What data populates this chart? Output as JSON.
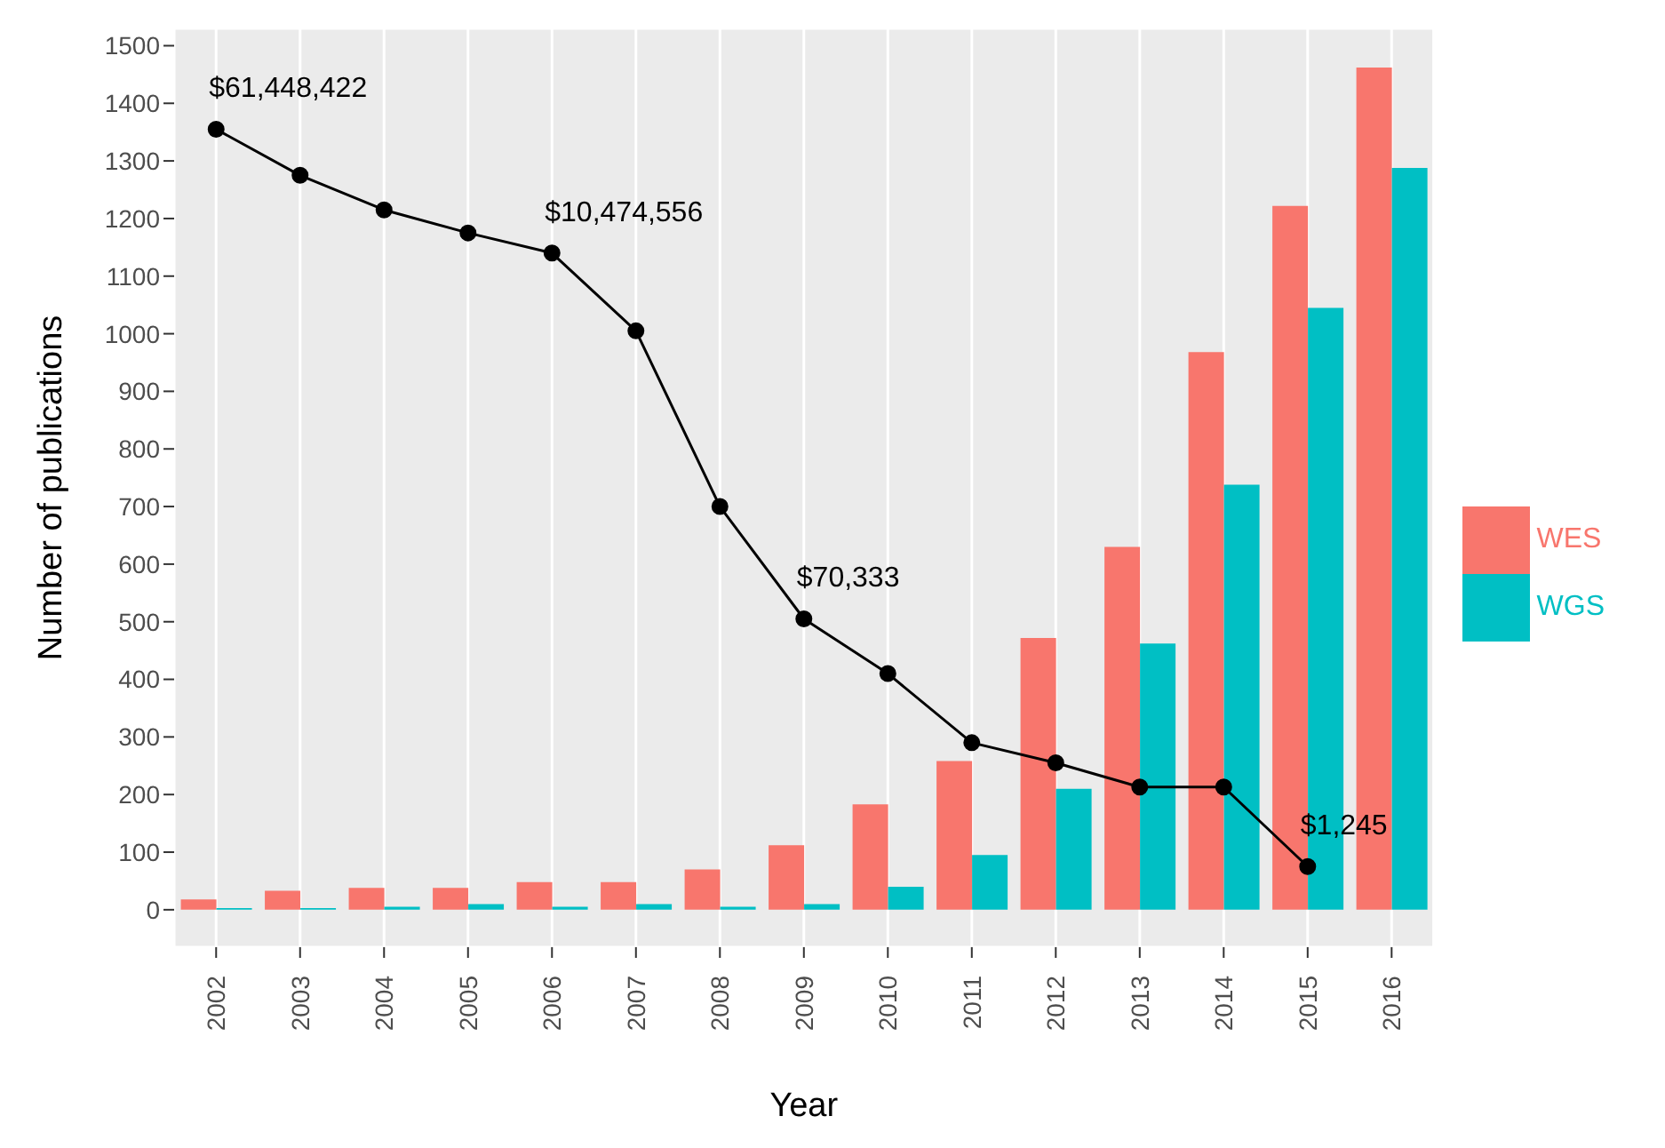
{
  "chart_data": {
    "type": "bar",
    "xlabel": "Year",
    "ylabel": "Number of publications",
    "categories": [
      "2002",
      "2003",
      "2004",
      "2005",
      "2006",
      "2007",
      "2008",
      "2009",
      "2010",
      "2011",
      "2012",
      "2013",
      "2014",
      "2015",
      "2016"
    ],
    "series": [
      {
        "name": "WES",
        "color": "#f8766d",
        "values": [
          18,
          33,
          38,
          38,
          48,
          48,
          70,
          112,
          183,
          258,
          472,
          630,
          968,
          1222,
          1462
        ]
      },
      {
        "name": "WGS",
        "color": "#00bfc4",
        "values": [
          3,
          3,
          5,
          10,
          5,
          10,
          5,
          10,
          40,
          95,
          210,
          462,
          738,
          1045,
          1288
        ]
      },
      {
        "type": "line",
        "color": "#000000",
        "values": [
          1355,
          1275,
          1215,
          1175,
          1140,
          1005,
          700,
          505,
          410,
          290,
          255,
          213,
          213,
          75,
          null
        ]
      }
    ],
    "ylim": [
      -65,
      1530
    ],
    "yticks": [
      0,
      100,
      200,
      300,
      400,
      500,
      600,
      700,
      800,
      900,
      1000,
      1100,
      1200,
      1300,
      1400,
      1500
    ],
    "grid": true,
    "legend": "right",
    "marker": "circle",
    "annotations": [
      {
        "text": "$61,448,422",
        "x": "2002",
        "y": 1355
      },
      {
        "text": "$10,474,556",
        "x": "2006",
        "y": 1140
      },
      {
        "text": "$70,333",
        "x": "2009",
        "y": 505
      },
      {
        "text": "$1,245",
        "x": "2015",
        "y": 75
      }
    ]
  }
}
